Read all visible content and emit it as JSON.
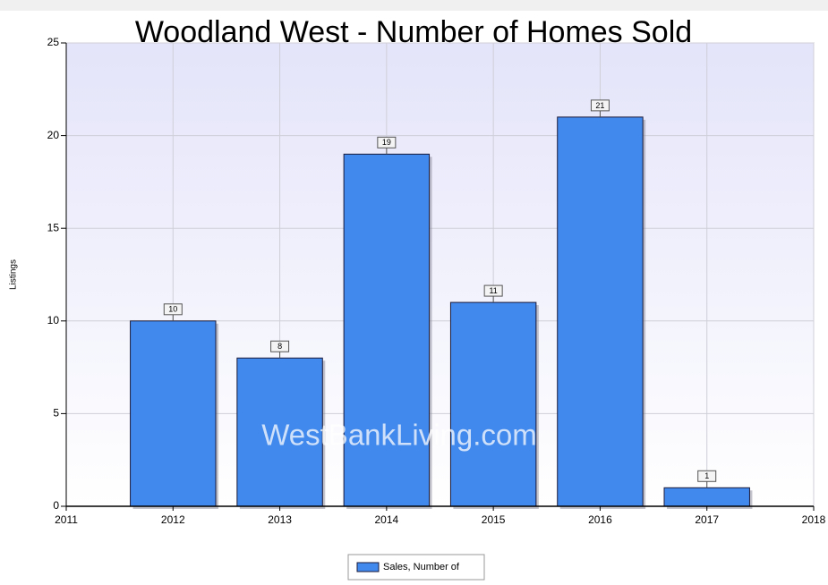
{
  "chart_data": {
    "type": "bar",
    "title": "Woodland West - Number of Homes Sold",
    "y_label": "Listings",
    "watermark": "WestBankLiving.com",
    "x": [
      2012,
      2013,
      2014,
      2015,
      2016,
      2017
    ],
    "series": [
      {
        "name": "Sales, Number of",
        "color": "#4189ec",
        "values": [
          10,
          8,
          19,
          11,
          21,
          1
        ]
      }
    ],
    "xlim": [
      2011,
      2018
    ],
    "xticks": [
      2011,
      2012,
      2013,
      2014,
      2015,
      2016,
      2017,
      2018
    ],
    "ylim": [
      0,
      25
    ],
    "yticks": [
      0,
      5,
      10,
      15,
      20,
      25
    ],
    "grid": true,
    "data_labels": true,
    "legend": "bottom"
  }
}
